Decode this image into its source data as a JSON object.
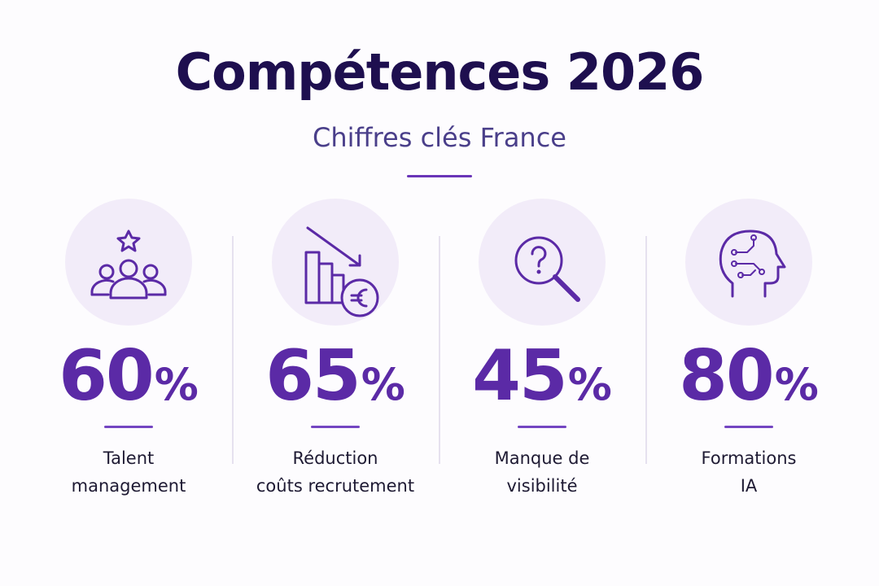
{
  "header": {
    "title": "Compétences 2026",
    "subtitle": "Chiffres clés France"
  },
  "stats": [
    {
      "value": 60,
      "unit": "%",
      "label": [
        "Talent",
        "management"
      ]
    },
    {
      "value": 65,
      "unit": "%",
      "label": [
        "Réduction",
        "coûts recrutement"
      ]
    },
    {
      "value": 45,
      "unit": "%",
      "label": [
        "Manque de",
        "visibilité"
      ]
    },
    {
      "value": 80,
      "unit": "%",
      "label": [
        "Formations",
        "IA"
      ]
    }
  ]
}
